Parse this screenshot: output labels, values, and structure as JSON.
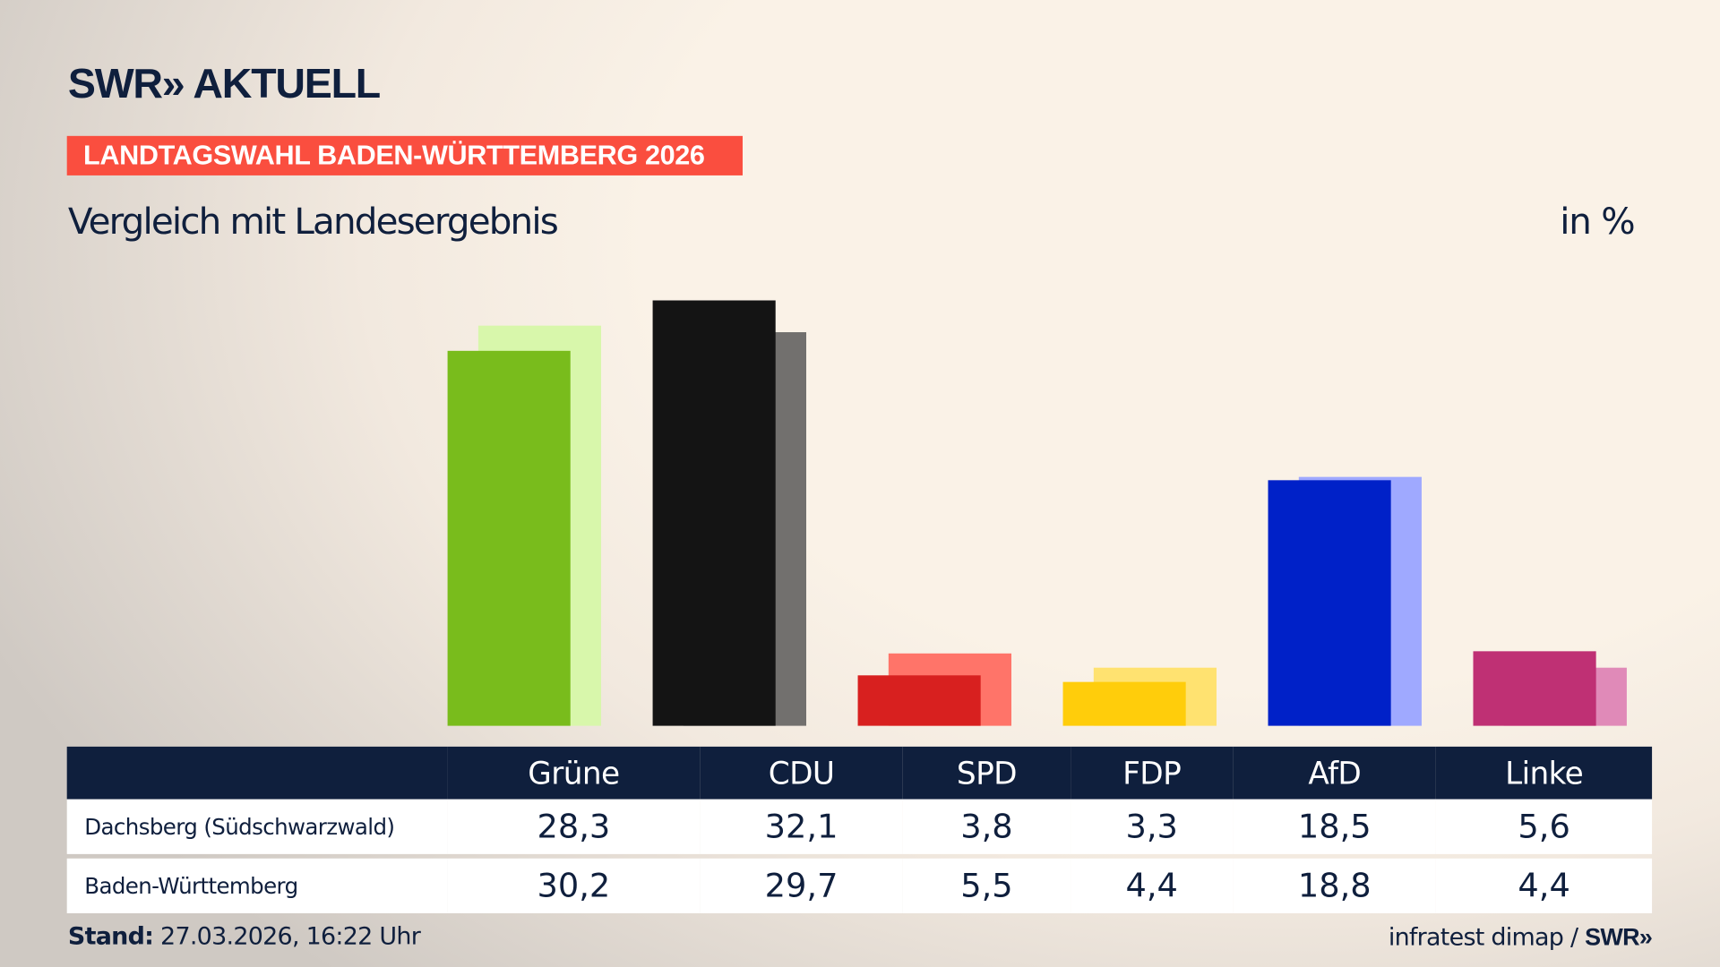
{
  "header": {
    "logo": "SWR» AKTUELL",
    "kicker": "LANDTAGSWAHL BADEN-WÜRTTEMBERG 2026",
    "subtitle": "Vergleich mit Landesergebnis",
    "unit": "in %"
  },
  "chart_data": {
    "type": "bar",
    "categories": [
      "Grüne",
      "CDU",
      "SPD",
      "FDP",
      "AfD",
      "Linke"
    ],
    "series": [
      {
        "name": "Dachsberg (Südschwarzwald)",
        "values": [
          28.3,
          32.1,
          3.8,
          3.3,
          18.5,
          5.6
        ],
        "labels": [
          "28,3",
          "32,1",
          "3,8",
          "3,3",
          "18,5",
          "5,6"
        ],
        "colors": [
          "#79bc1c",
          "#141414",
          "#d8201f",
          "#ffcd0b",
          "#0021c8",
          "#bf3074"
        ]
      },
      {
        "name": "Baden-Württemberg",
        "values": [
          30.2,
          29.7,
          5.5,
          4.4,
          18.8,
          4.4
        ],
        "labels": [
          "30,2",
          "29,7",
          "5,5",
          "4,4",
          "18,8",
          "4,4"
        ],
        "colors": [
          "#d8f7ab",
          "#72706e",
          "#ff7469",
          "#ffe270",
          "#9fa9ff",
          "#e08ab8"
        ]
      }
    ],
    "ylim": [
      0,
      32.1
    ]
  },
  "footer": {
    "stand_label": "Stand:",
    "stand_value": " 27.03.2026, 16:22 Uhr",
    "source": "infratest dimap / ",
    "source_logo": "SWR»"
  }
}
